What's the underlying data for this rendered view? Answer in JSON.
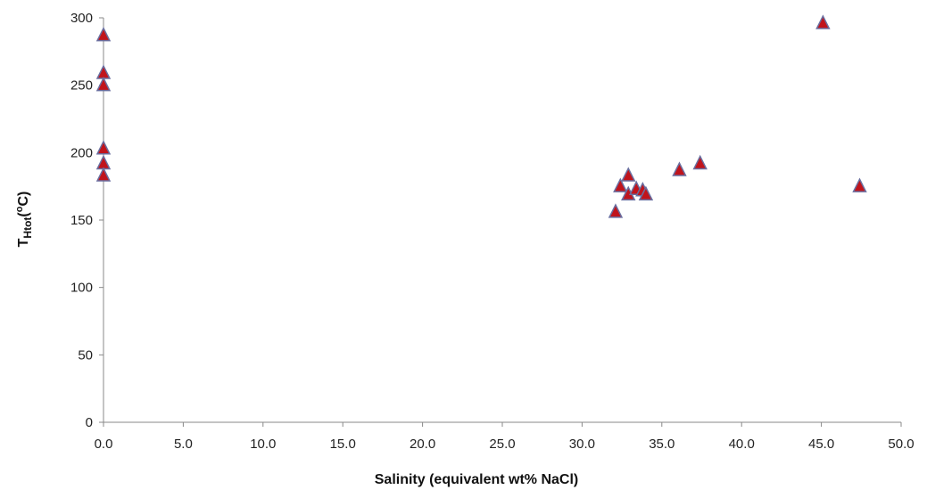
{
  "chart_data": {
    "type": "scatter",
    "title": "",
    "xlabel": "Salinity (equivalent wt% NaCl)",
    "ylabel": {
      "base": "T",
      "subscript": "Htot",
      "open": "(",
      "superscript": "o",
      "unit": "C)"
    },
    "xlim": [
      0,
      50
    ],
    "ylim": [
      0,
      300
    ],
    "x_ticks": [
      "0.0",
      "5.0",
      "10.0",
      "15.0",
      "20.0",
      "25.0",
      "30.0",
      "35.0",
      "40.0",
      "45.0",
      "50.0"
    ],
    "y_ticks": [
      "0",
      "50",
      "100",
      "150",
      "200",
      "250",
      "300"
    ],
    "grid": false,
    "marker": "triangle",
    "colors": {
      "marker_fill": "#c0141c",
      "marker_edge": "#6a6fa0"
    },
    "series": [
      {
        "points": [
          {
            "x": 0.0,
            "y": 287
          },
          {
            "x": 0.0,
            "y": 259
          },
          {
            "x": 0.0,
            "y": 250
          },
          {
            "x": 0.0,
            "y": 203
          },
          {
            "x": 0.0,
            "y": 192
          },
          {
            "x": 0.0,
            "y": 183
          },
          {
            "x": 32.1,
            "y": 156
          },
          {
            "x": 32.4,
            "y": 175
          },
          {
            "x": 32.9,
            "y": 183
          },
          {
            "x": 32.9,
            "y": 169
          },
          {
            "x": 33.4,
            "y": 173
          },
          {
            "x": 33.8,
            "y": 172
          },
          {
            "x": 34.0,
            "y": 169
          },
          {
            "x": 36.1,
            "y": 187
          },
          {
            "x": 37.4,
            "y": 192
          },
          {
            "x": 45.1,
            "y": 296
          },
          {
            "x": 47.4,
            "y": 175
          }
        ]
      }
    ]
  }
}
